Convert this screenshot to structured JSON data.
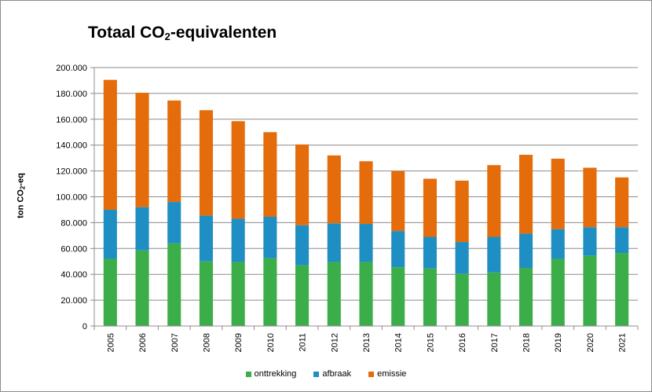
{
  "chart_data": {
    "type": "bar",
    "stacked": true,
    "title": "Totaal CO₂-equivalenten",
    "title_parts": {
      "pre": "Totaal CO",
      "sub": "2",
      "post": "-equivalenten"
    },
    "xlabel": "",
    "ylabel": "ton CO₂-eq",
    "ylabel_parts": {
      "pre": "ton CO",
      "sub": "2",
      "post": "-eq"
    },
    "ylim": [
      0,
      200000
    ],
    "yticks": [
      0,
      20000,
      40000,
      60000,
      80000,
      100000,
      120000,
      140000,
      160000,
      180000,
      200000
    ],
    "ytick_labels": [
      "0",
      "20.000",
      "40.000",
      "60.000",
      "80.000",
      "100.000",
      "120.000",
      "140.000",
      "160.000",
      "180.000",
      "200.000"
    ],
    "grid": true,
    "legend_position": "bottom",
    "categories": [
      "2005",
      "2006",
      "2007",
      "2008",
      "2009",
      "2010",
      "2011",
      "2012",
      "2013",
      "2014",
      "2015",
      "2016",
      "2017",
      "2018",
      "2019",
      "2020",
      "2021"
    ],
    "series": [
      {
        "name": "onttrekking",
        "color": "#3cae49",
        "values": [
          52000,
          58500,
          64000,
          50000,
          49500,
          52500,
          47000,
          49500,
          49500,
          45500,
          44500,
          40500,
          41500,
          45000,
          52000,
          54500,
          56500
        ]
      },
      {
        "name": "afbraak",
        "color": "#1f8ec3",
        "values": [
          38000,
          33500,
          32000,
          35500,
          33500,
          32000,
          31000,
          30000,
          29500,
          28000,
          24500,
          24500,
          27500,
          26500,
          23000,
          22000,
          20000
        ]
      },
      {
        "name": "emissie",
        "color": "#e46c0a",
        "values": [
          100500,
          88500,
          78500,
          81500,
          75500,
          65500,
          62500,
          52500,
          48500,
          46500,
          45000,
          47500,
          55500,
          61000,
          54500,
          46000,
          38500
        ]
      }
    ]
  }
}
